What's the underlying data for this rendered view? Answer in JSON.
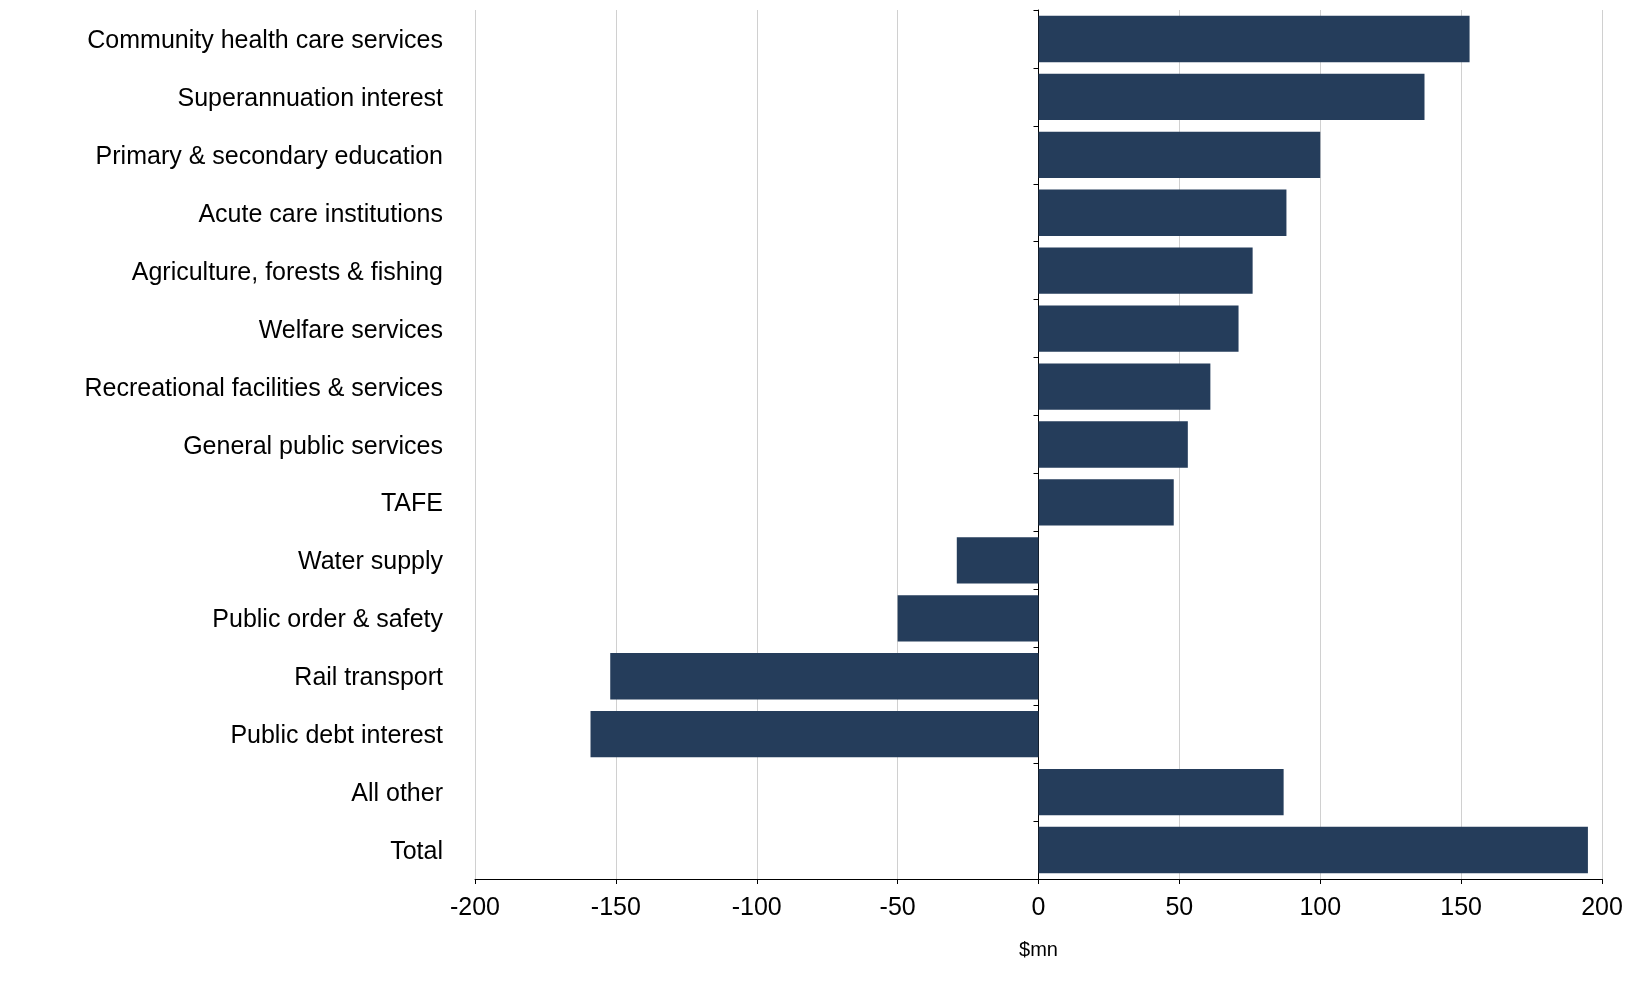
{
  "chart_data": {
    "type": "bar",
    "orientation": "horizontal",
    "xlabel": "$mn",
    "categories": [
      "Community health care services",
      "Superannuation interest",
      "Primary & secondary education",
      "Acute care institutions",
      "Agriculture, forests & fishing",
      "Welfare services",
      "Recreational facilities & services",
      "General public services",
      "TAFE",
      "Water supply",
      "Public order & safety",
      "Rail transport",
      "Public debt interest",
      "All other",
      "Total"
    ],
    "values": [
      153,
      137,
      100,
      88,
      76,
      71,
      61,
      53,
      48,
      -29,
      -50,
      -152,
      -159,
      87,
      195
    ],
    "color": "#253d5b",
    "xlim": [
      -200,
      200
    ],
    "xticks": [
      -200,
      -150,
      -100,
      -50,
      0,
      50,
      100,
      150,
      200
    ],
    "grid": "x"
  }
}
